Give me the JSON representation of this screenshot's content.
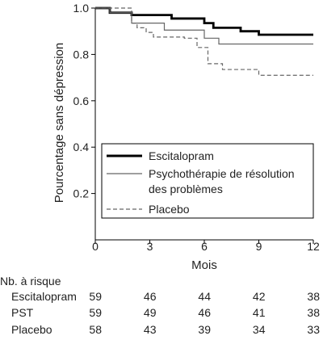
{
  "chart_data": {
    "type": "line",
    "xlabel": "Mois",
    "ylabel": "Pourcentage sans dépression",
    "xlim": [
      0,
      12
    ],
    "ylim": [
      0,
      1.0
    ],
    "xticks": [
      "0",
      "3",
      "6",
      "9",
      "12"
    ],
    "yticks": [
      "0.2",
      "0.4",
      "0.6",
      "0.8",
      "1.0"
    ],
    "legend_position": "bottom-left",
    "series": [
      {
        "name": "Escitalopram",
        "style": "thick-solid",
        "color": "#000000",
        "x": [
          0,
          0.8,
          2.0,
          4.2,
          6.0,
          6.5,
          8.0,
          9.0,
          12.0
        ],
        "y": [
          1.0,
          0.98,
          0.97,
          0.955,
          0.935,
          0.915,
          0.9,
          0.885,
          0.885
        ]
      },
      {
        "name": "Psychothérapie de résolution des problèmes",
        "style": "thin-solid",
        "color": "#666666",
        "x": [
          0,
          0.8,
          2.0,
          3.8,
          6.0,
          6.8,
          12.0
        ],
        "y": [
          1.0,
          0.98,
          0.935,
          0.905,
          0.87,
          0.845,
          0.845
        ]
      },
      {
        "name": "Placebo",
        "style": "dashed",
        "color": "#666666",
        "x": [
          0,
          2.0,
          2.3,
          2.8,
          3.2,
          4.9,
          5.6,
          6.2,
          7.0,
          9.0,
          12.0
        ],
        "y": [
          1.0,
          0.935,
          0.915,
          0.895,
          0.875,
          0.87,
          0.83,
          0.76,
          0.735,
          0.71,
          0.71
        ]
      }
    ],
    "risk_table": {
      "title": "Nb. à risque",
      "time_points": [
        0,
        3,
        6,
        9,
        12
      ],
      "rows": [
        {
          "label": "Escitalopram",
          "values": [
            "59",
            "46",
            "44",
            "42",
            "38"
          ]
        },
        {
          "label": "PST",
          "values": [
            "59",
            "49",
            "46",
            "41",
            "38"
          ]
        },
        {
          "label": "Placebo",
          "values": [
            "58",
            "43",
            "39",
            "34",
            "33"
          ]
        }
      ]
    }
  },
  "legend": {
    "items": [
      {
        "line1": "Escitalopram",
        "line2": ""
      },
      {
        "line1": "Psychothérapie de résolution",
        "line2": "des problèmes"
      },
      {
        "line1": "Placebo",
        "line2": ""
      }
    ]
  }
}
